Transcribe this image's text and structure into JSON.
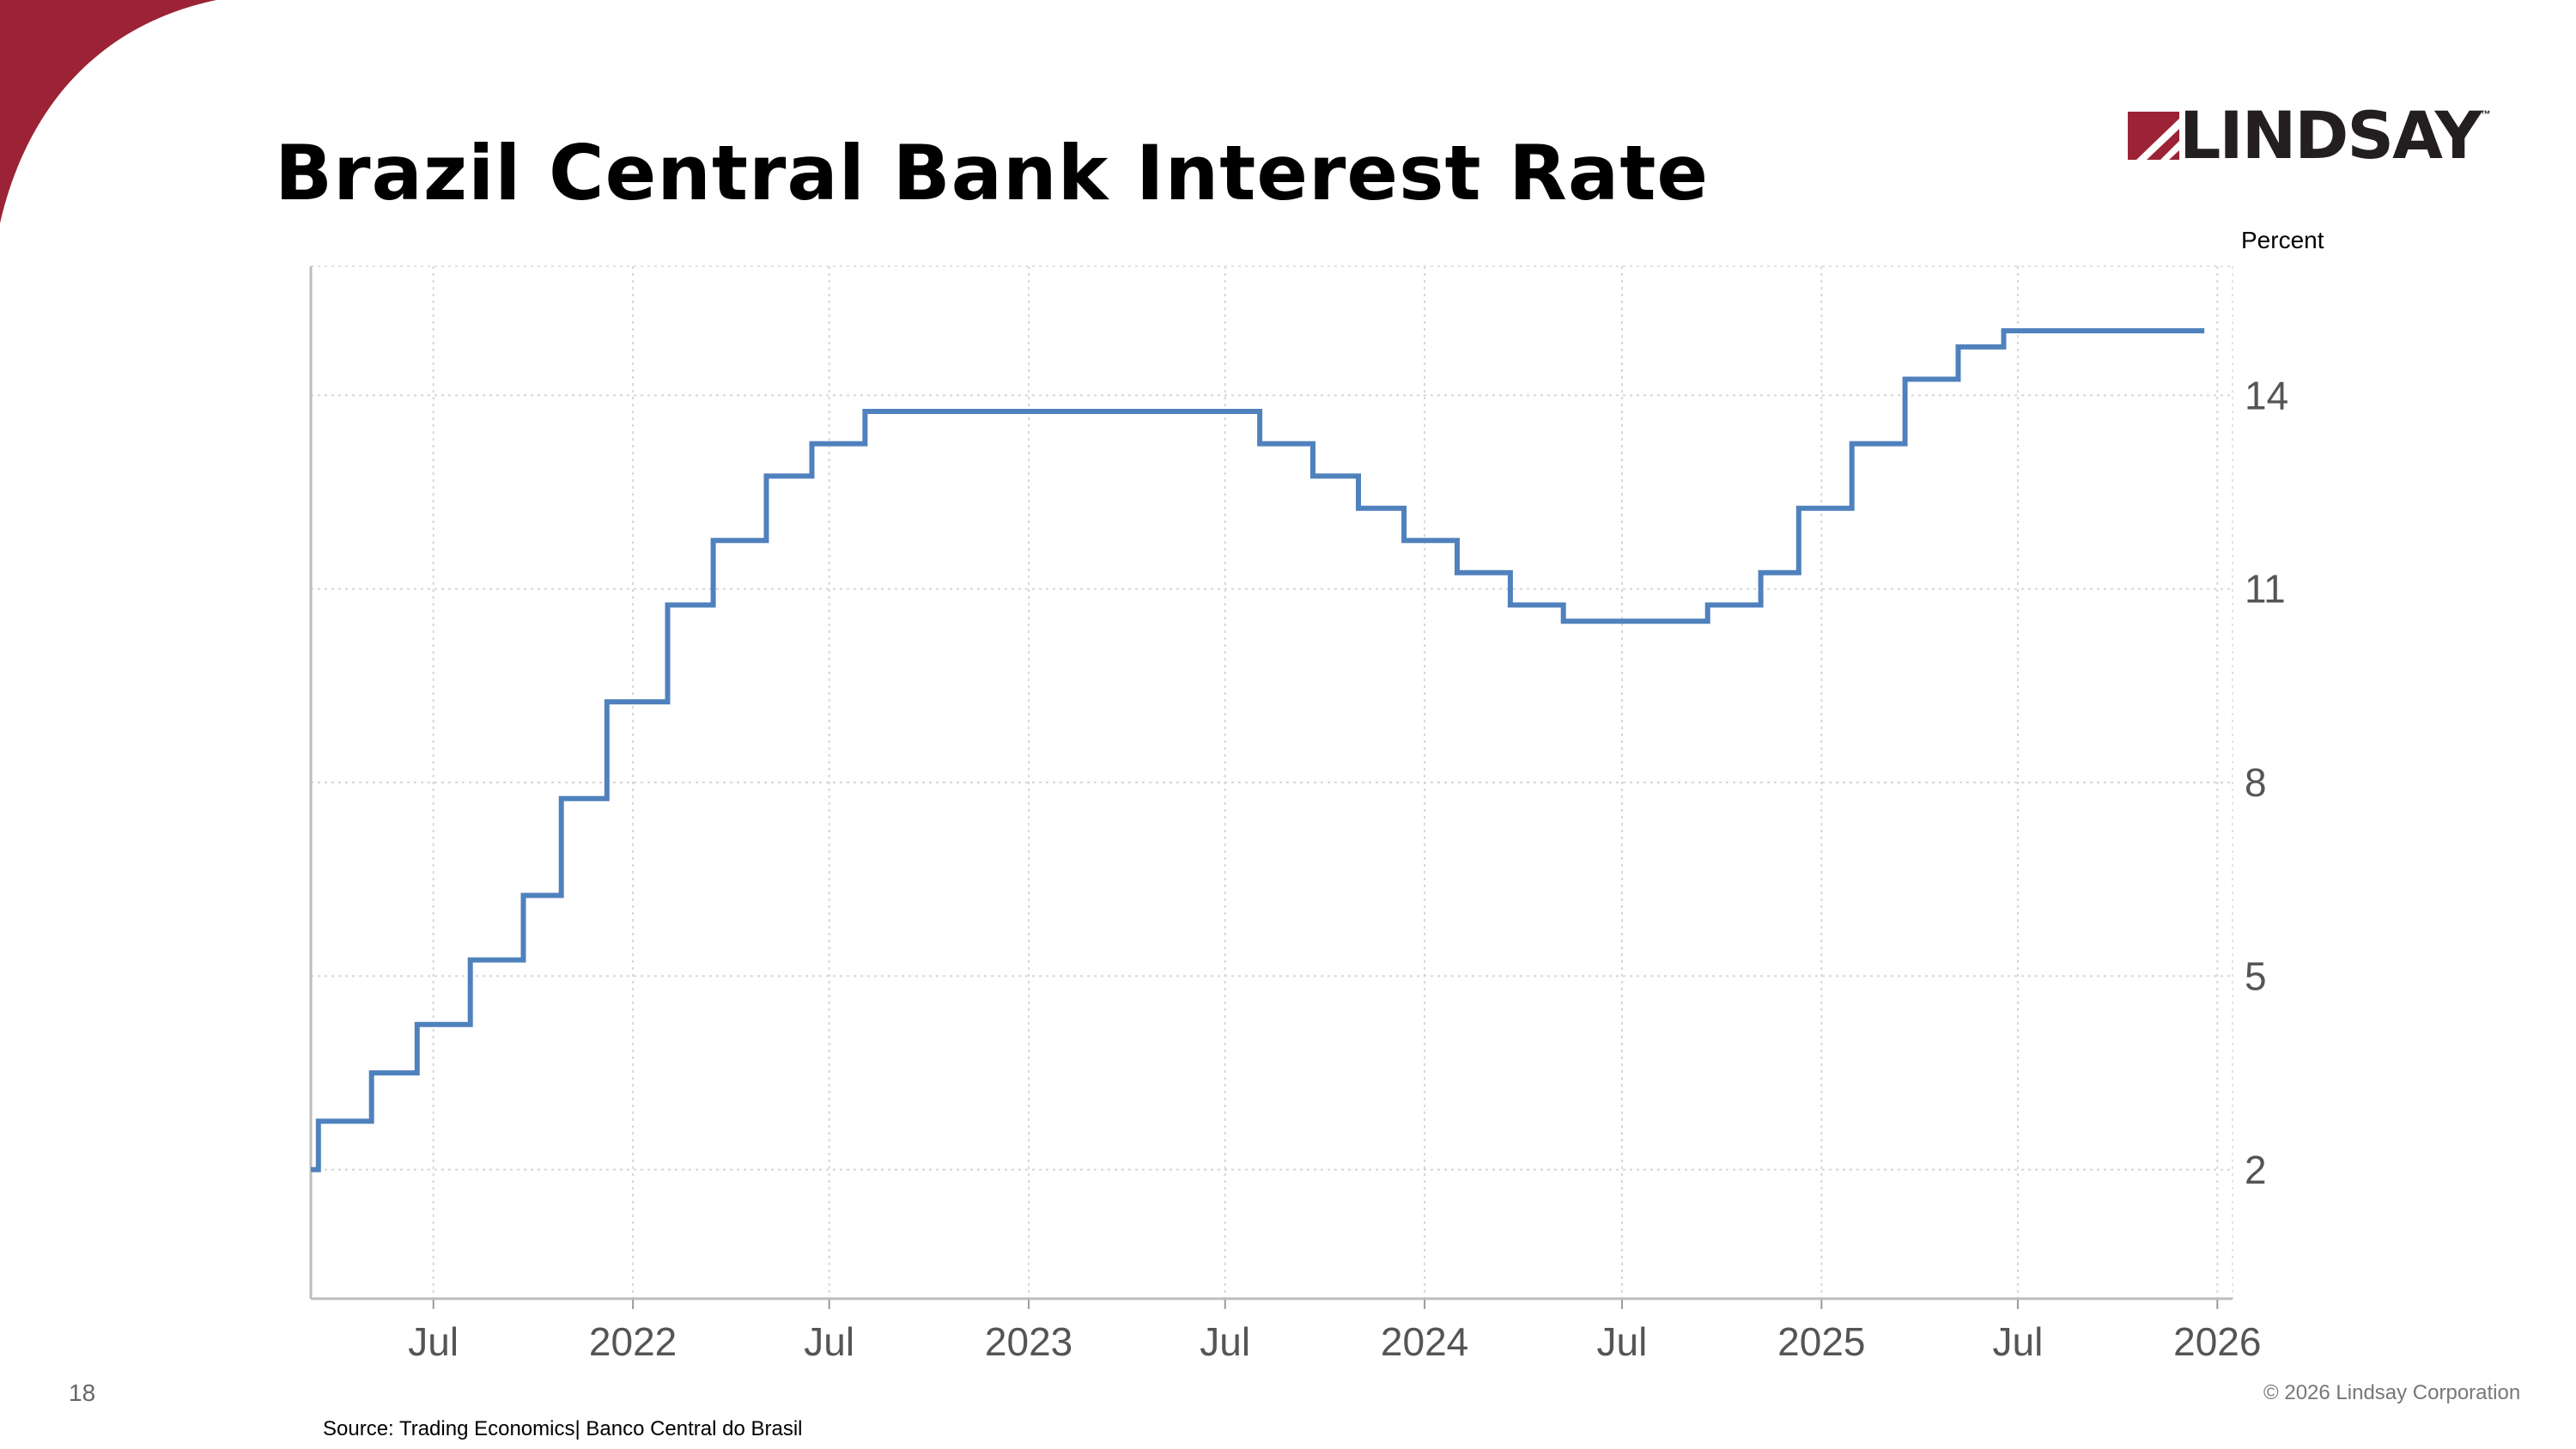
{
  "slide": {
    "title": "Brazil Central Bank Interest Rate",
    "page_number": "18",
    "copyright": "© 2026 Lindsay Corporation",
    "source": "Source: Trading Economics| Banco Central do Brasil",
    "brand_color": "#9b2335"
  },
  "logo": {
    "text": "LINDSAY",
    "tm": "™",
    "mark_color": "#9b2335",
    "text_color": "#231f20"
  },
  "chart_data": {
    "type": "line",
    "step": true,
    "ylabel": "Percent",
    "ylim": [
      0,
      16
    ],
    "yticks": [
      2,
      5,
      8,
      11,
      14
    ],
    "xlim": [
      "2021-03-10",
      "2026-01-15"
    ],
    "xticks": [
      {
        "date": "2021-07-01",
        "label": "Jul"
      },
      {
        "date": "2022-01-01",
        "label": "2022"
      },
      {
        "date": "2022-07-01",
        "label": "Jul"
      },
      {
        "date": "2023-01-01",
        "label": "2023"
      },
      {
        "date": "2023-07-01",
        "label": "Jul"
      },
      {
        "date": "2024-01-01",
        "label": "2024"
      },
      {
        "date": "2024-07-01",
        "label": "Jul"
      },
      {
        "date": "2025-01-01",
        "label": "2025"
      },
      {
        "date": "2025-07-01",
        "label": "Jul"
      },
      {
        "date": "2026-01-01",
        "label": "2026"
      }
    ],
    "grid": true,
    "line_color": "#4f81bd",
    "series": [
      {
        "name": "",
        "x": [
          "2021-03-10",
          "2021-03-17",
          "2021-05-05",
          "2021-06-16",
          "2021-08-04",
          "2021-09-22",
          "2021-10-27",
          "2021-12-08",
          "2022-02-02",
          "2022-03-16",
          "2022-05-04",
          "2022-06-15",
          "2022-08-03",
          "2023-08-02",
          "2023-09-20",
          "2023-11-01",
          "2023-12-13",
          "2024-01-31",
          "2024-03-20",
          "2024-05-08",
          "2024-09-18",
          "2024-11-06",
          "2024-12-11",
          "2025-01-29",
          "2025-03-19",
          "2025-05-07",
          "2025-06-18",
          "2025-12-20"
        ],
        "values": [
          2.0,
          2.75,
          3.5,
          4.25,
          5.25,
          6.25,
          7.75,
          9.25,
          10.75,
          11.75,
          12.75,
          13.25,
          13.75,
          13.25,
          12.75,
          12.25,
          11.75,
          11.25,
          10.75,
          10.5,
          10.75,
          11.25,
          12.25,
          13.25,
          14.25,
          14.75,
          15.0,
          15.0
        ]
      }
    ]
  }
}
